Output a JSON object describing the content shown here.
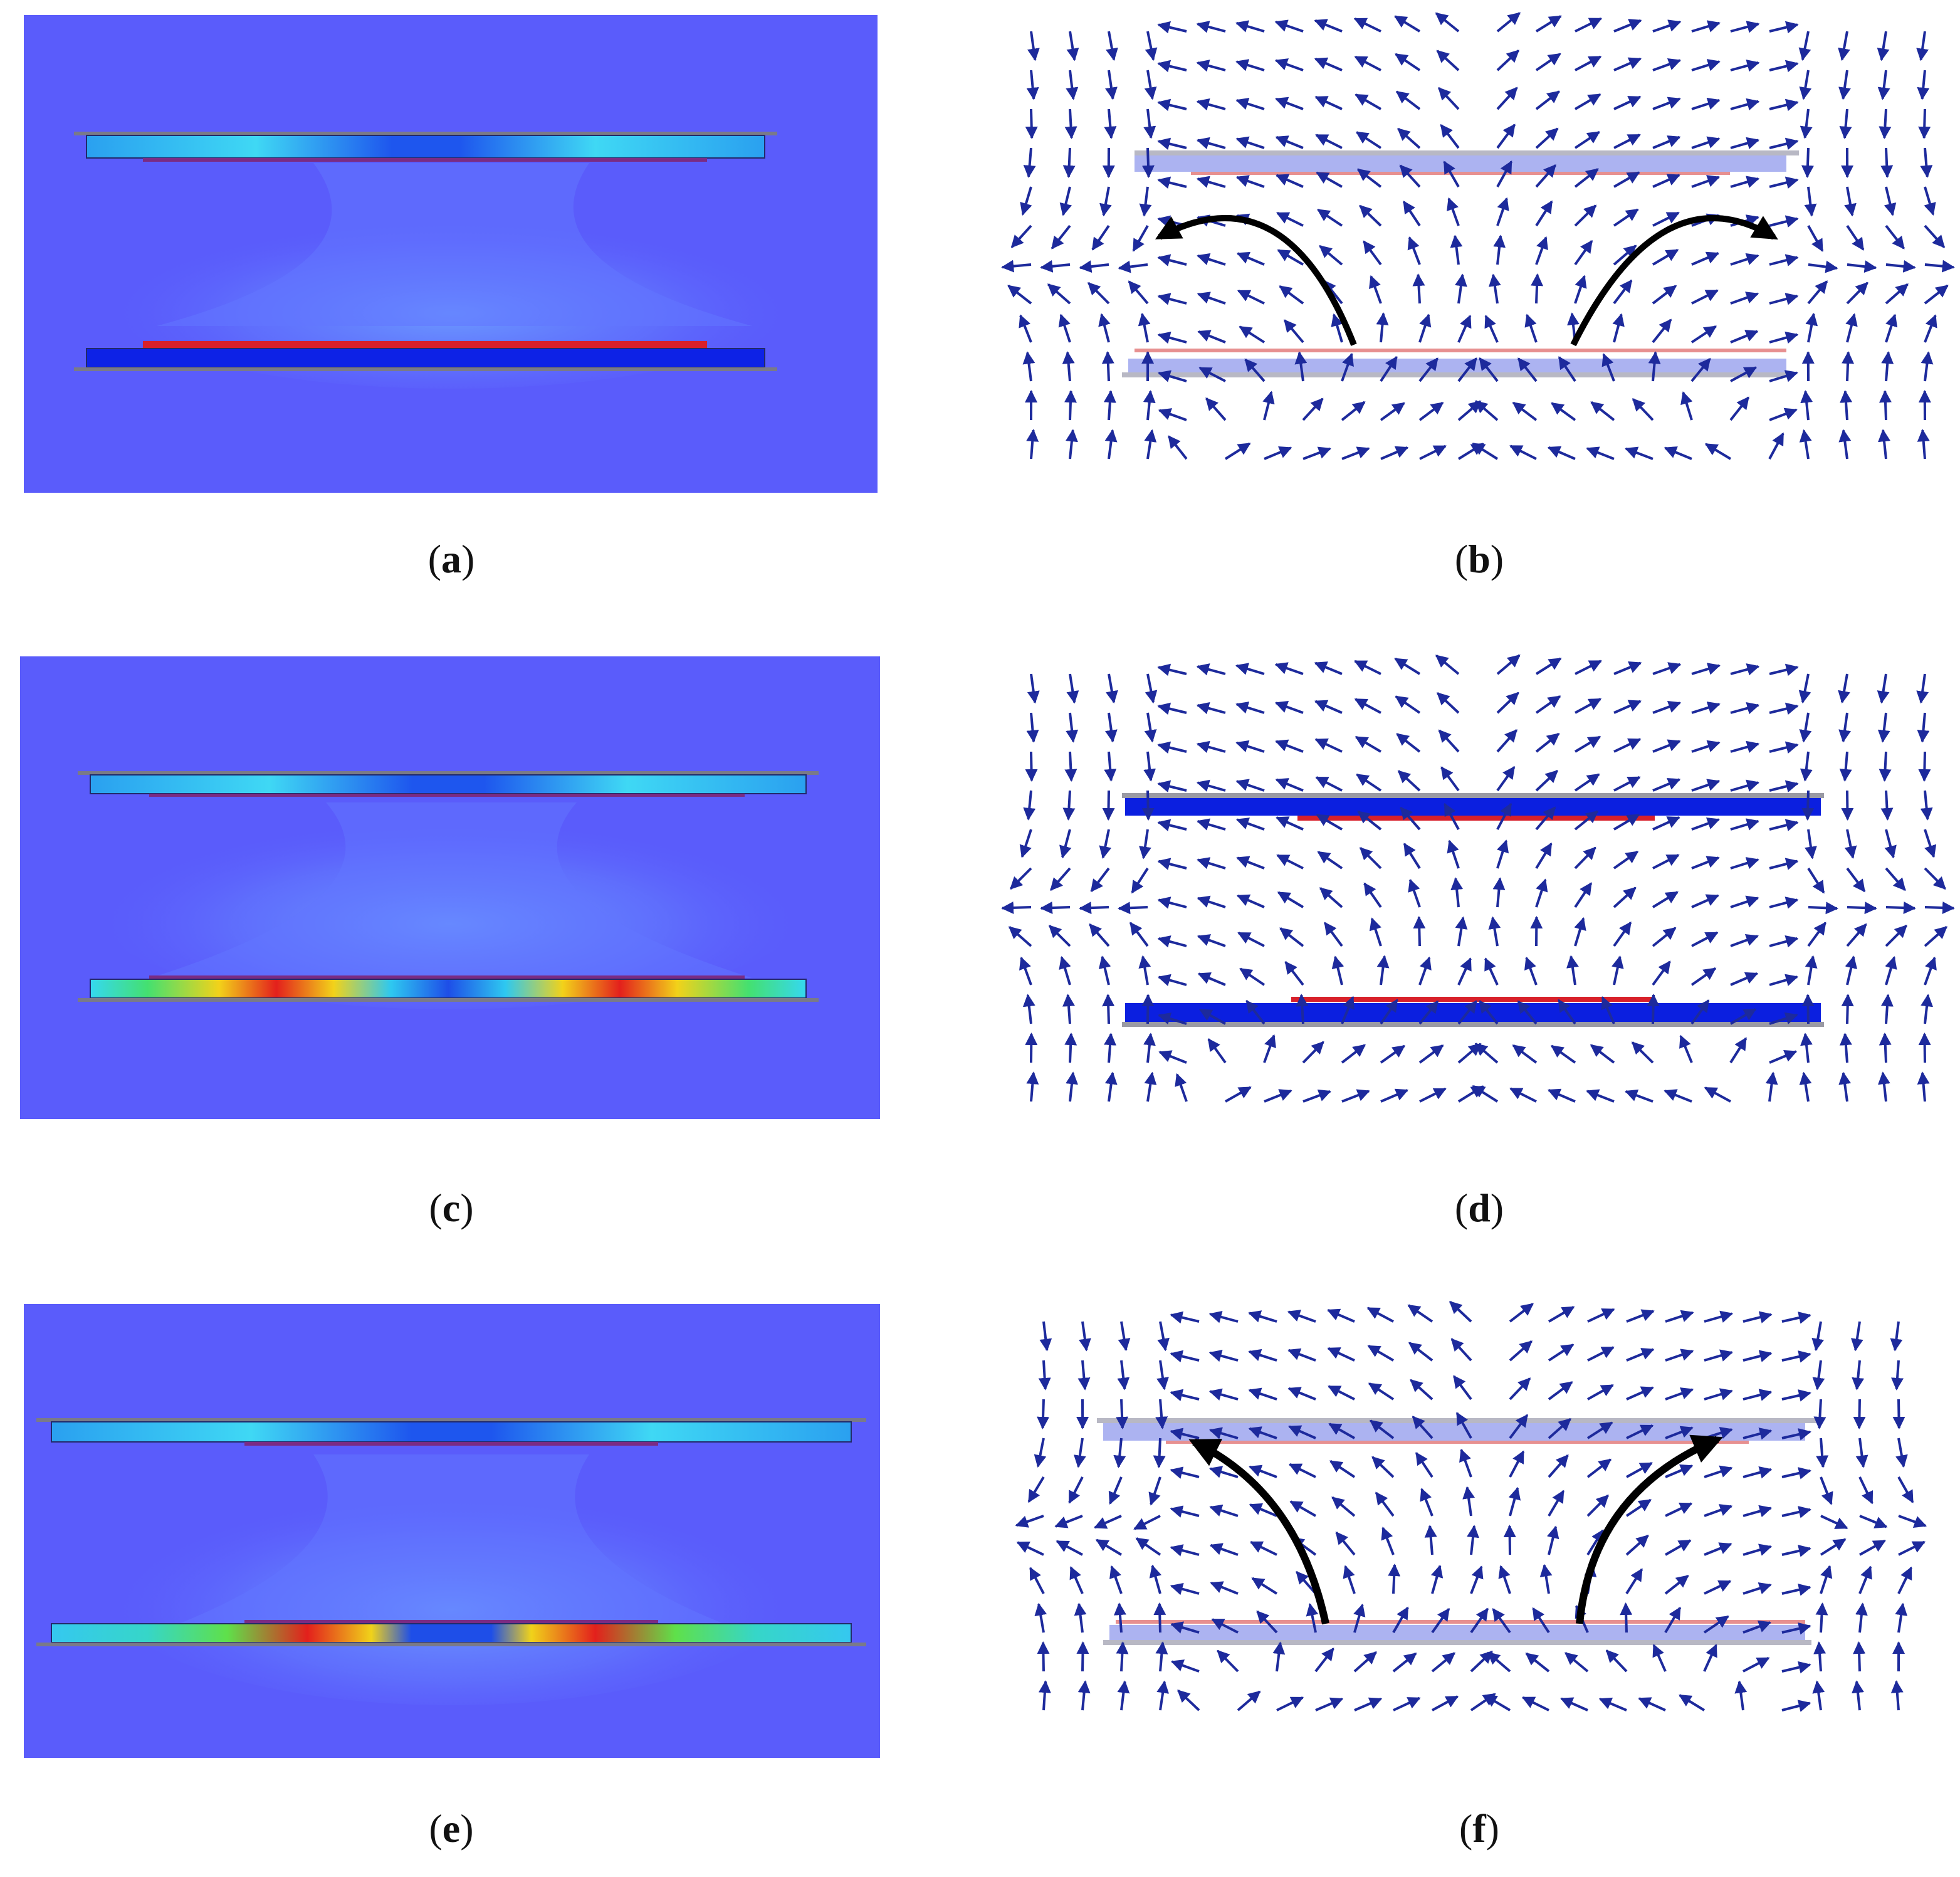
{
  "panels": [
    {
      "id": "a",
      "label": "a",
      "kind": "field-magnitude",
      "hotspots": false
    },
    {
      "id": "b",
      "label": "b",
      "kind": "vector-field",
      "curved_arrows": true
    },
    {
      "id": "c",
      "label": "c",
      "kind": "field-magnitude",
      "hotspots": true
    },
    {
      "id": "d",
      "label": "d",
      "kind": "vector-field",
      "curved_arrows": false
    },
    {
      "id": "e",
      "label": "e",
      "kind": "field-magnitude",
      "hotspots": true
    },
    {
      "id": "f",
      "label": "f",
      "kind": "vector-field",
      "curved_arrows": true
    }
  ],
  "colors": {
    "background_field": "#5a5cfb",
    "plate_light": "#3fc6ee",
    "plate_dark": "#0d22e6",
    "conductor_red": "#d8202a",
    "arrow": "#1d2a9c",
    "hot": "#e3201c",
    "warm": "#f2d21a",
    "mid": "#3ddc5a"
  }
}
